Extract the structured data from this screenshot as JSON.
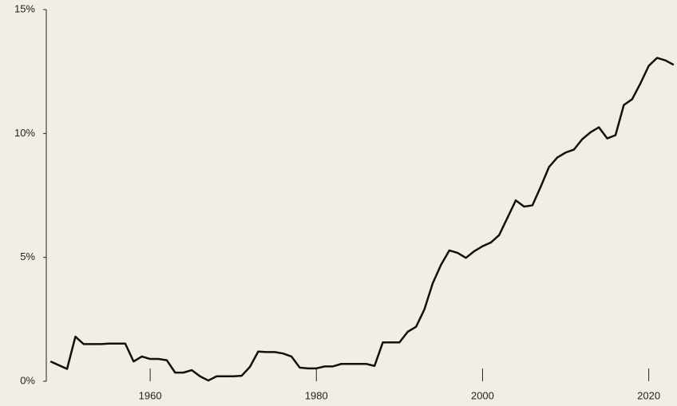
{
  "chart_data": {
    "type": "line",
    "x": [
      1948,
      1949,
      1950,
      1951,
      1952,
      1953,
      1954,
      1955,
      1956,
      1957,
      1958,
      1959,
      1960,
      1961,
      1962,
      1963,
      1964,
      1965,
      1966,
      1967,
      1968,
      1969,
      1970,
      1971,
      1972,
      1973,
      1974,
      1975,
      1976,
      1977,
      1978,
      1979,
      1980,
      1981,
      1982,
      1983,
      1984,
      1985,
      1986,
      1987,
      1988,
      1989,
      1990,
      1991,
      1992,
      1993,
      1994,
      1995,
      1996,
      1997,
      1998,
      1999,
      2000,
      2001,
      2002,
      2003,
      2004,
      2005,
      2006,
      2007,
      2008,
      2009,
      2010,
      2011,
      2012,
      2013,
      2014,
      2015,
      2016,
      2017,
      2018,
      2019,
      2020,
      2021,
      2022,
      2023
    ],
    "series": [
      {
        "color": "#111111",
        "values": [
          0.8,
          0.65,
          0.5,
          1.8,
          1.5,
          1.5,
          1.5,
          1.52,
          1.52,
          1.52,
          0.8,
          1.0,
          0.9,
          0.9,
          0.85,
          0.35,
          0.35,
          0.45,
          0.2,
          0.03,
          0.2,
          0.2,
          0.2,
          0.22,
          0.58,
          1.2,
          1.18,
          1.18,
          1.12,
          1.0,
          0.55,
          0.52,
          0.52,
          0.6,
          0.6,
          0.7,
          0.7,
          0.7,
          0.7,
          0.62,
          1.57,
          1.57,
          1.57,
          2.0,
          2.2,
          2.9,
          3.95,
          4.7,
          5.28,
          5.18,
          4.98,
          5.25,
          5.45,
          5.6,
          5.9,
          6.6,
          7.3,
          7.05,
          7.1,
          7.85,
          8.65,
          9.03,
          9.23,
          9.35,
          9.77,
          10.05,
          10.25,
          9.8,
          9.93,
          11.15,
          11.38,
          12.02,
          12.73,
          13.05,
          12.95,
          12.77
        ]
      }
    ],
    "xlim": [
      1947.5,
      2023.4
    ],
    "xticks": [
      1960,
      1980,
      2000,
      2020
    ],
    "ylim": [
      0,
      15
    ],
    "yticks": [
      {
        "value": 0,
        "label": "0%"
      },
      {
        "value": 5,
        "label": "5%"
      },
      {
        "value": 10,
        "label": "10%"
      },
      {
        "value": 15,
        "label": "15%"
      }
    ]
  }
}
